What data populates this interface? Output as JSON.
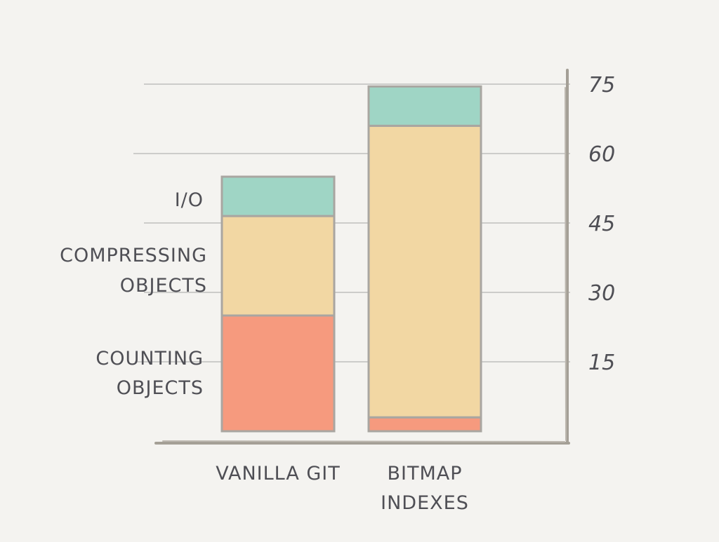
{
  "chart_data": {
    "type": "bar",
    "stacked": true,
    "categories": [
      [
        "VANILLA GIT"
      ],
      [
        "BITMAP",
        "INDEXES"
      ]
    ],
    "series": [
      {
        "name": "COUNTING OBJECTS",
        "label_lines": [
          "COUNTING",
          "OBJECTS"
        ],
        "color": "#f69a7e",
        "values": [
          25,
          3
        ]
      },
      {
        "name": "COMPRESSING OBJECTS",
        "label_lines": [
          "COMPRESSING",
          "OBJECTS"
        ],
        "color": "#f2d7a3",
        "values": [
          21.5,
          63
        ]
      },
      {
        "name": "I/O",
        "label_lines": [
          "I/O"
        ],
        "color": "#9fd5c5",
        "values": [
          8.5,
          8.5
        ]
      }
    ],
    "y_ticks": [
      "15",
      "30",
      "45",
      "60",
      "75"
    ],
    "ylim": [
      0,
      75
    ],
    "axis_position": "right",
    "grid": true,
    "title": "",
    "xlabel": "",
    "ylabel": ""
  }
}
